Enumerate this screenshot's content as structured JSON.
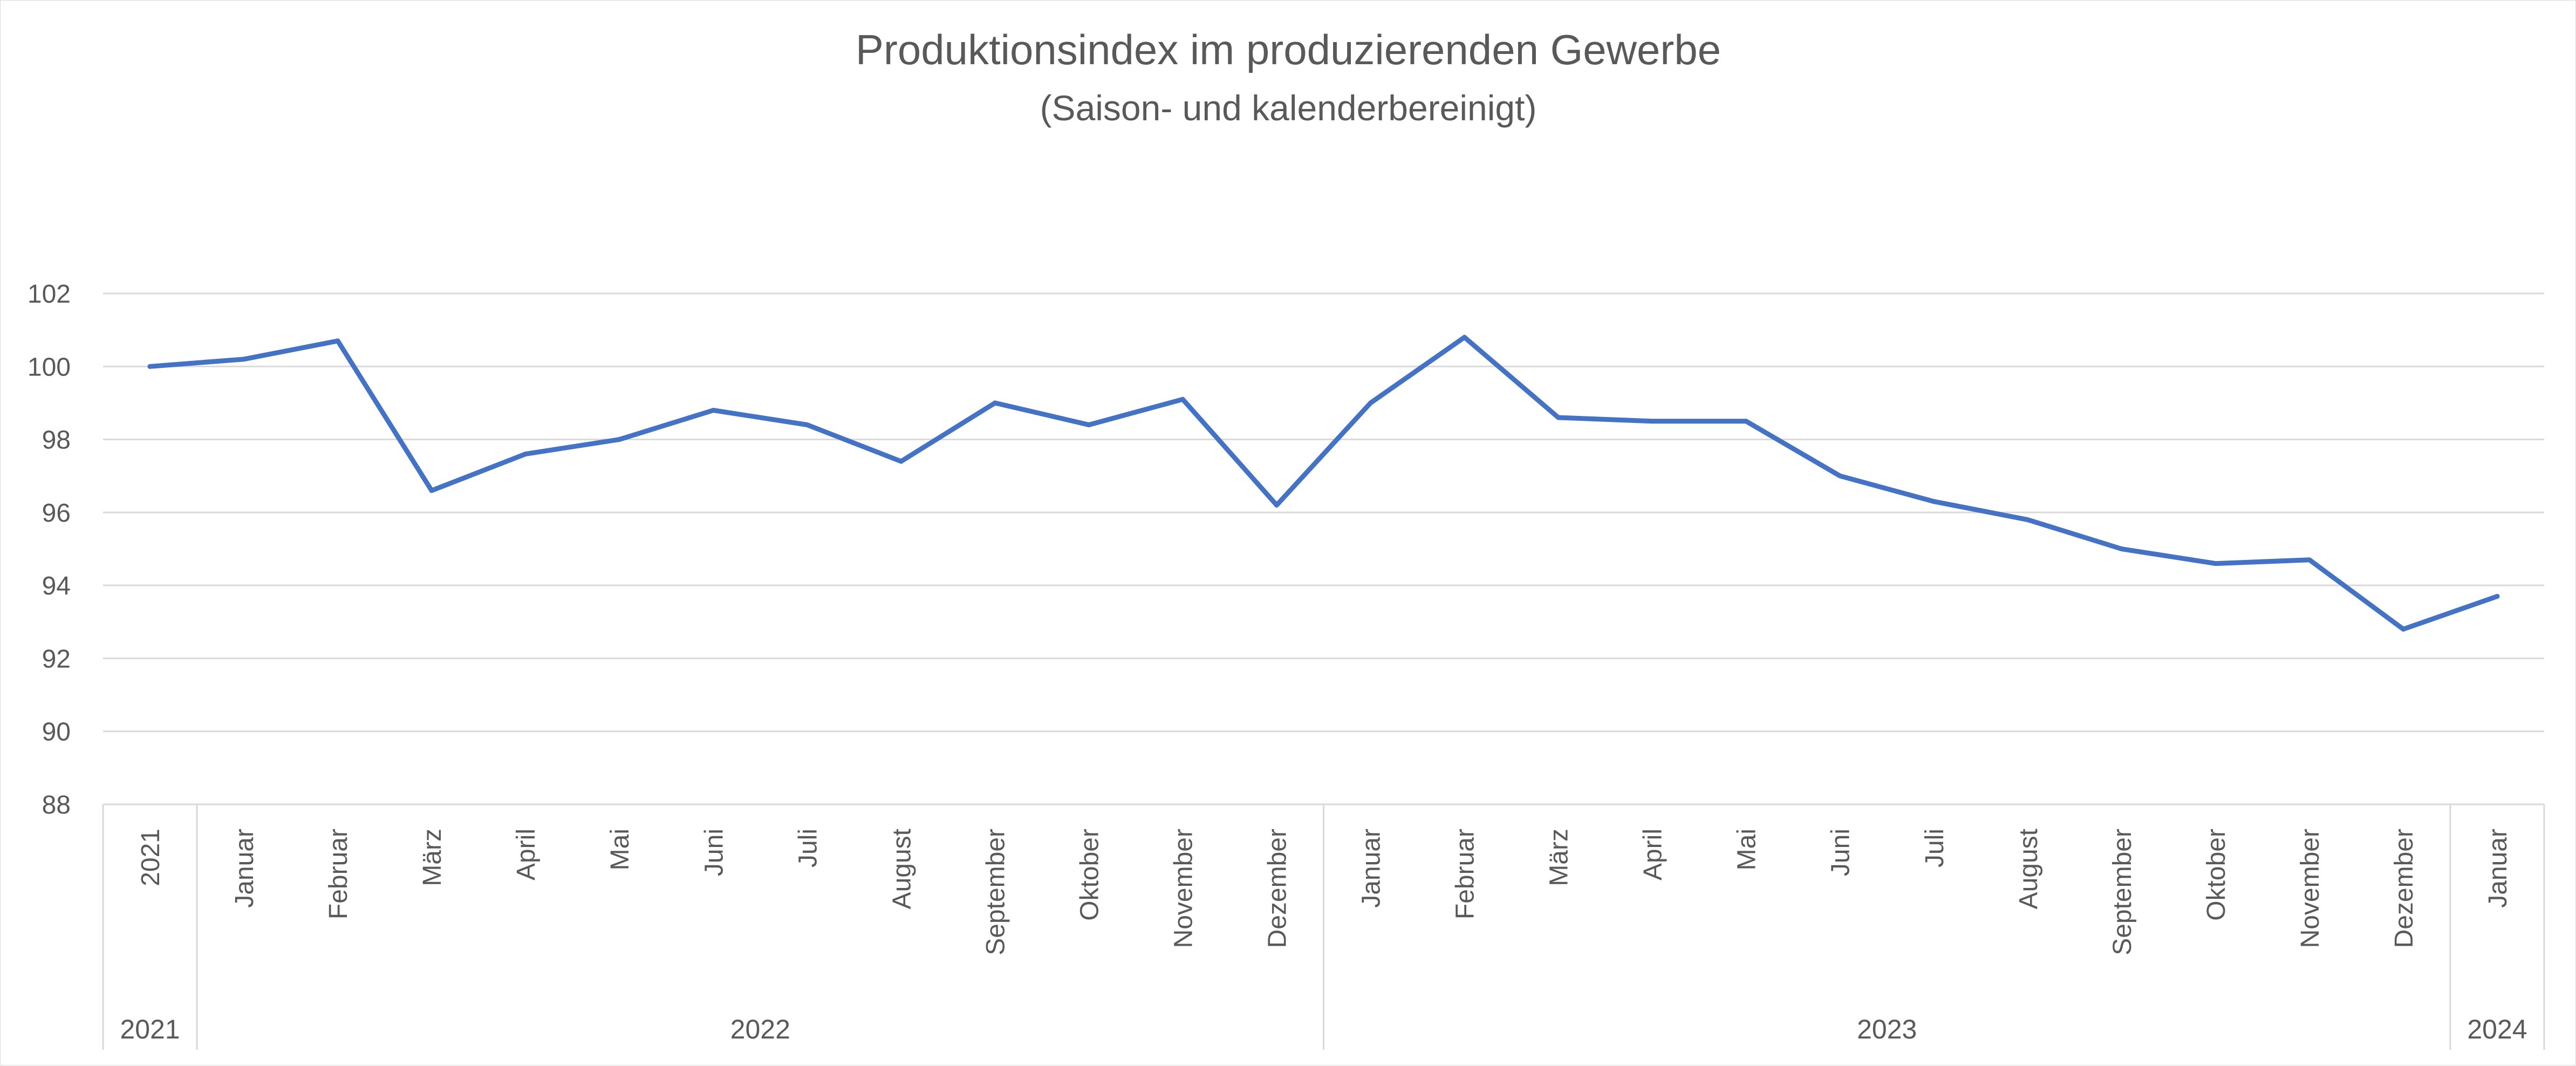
{
  "chart_data": {
    "type": "line",
    "title": "Produktionsindex im produzierenden Gewerbe",
    "subtitle": "(Saison- und kalenderbereinigt)",
    "xlabel": "",
    "ylabel": "",
    "ylim": [
      88,
      102
    ],
    "yticks": [
      88,
      90,
      92,
      94,
      96,
      98,
      100,
      102
    ],
    "grid": true,
    "legend": "none",
    "categories": [
      "2021",
      "Januar",
      "Februar",
      "März",
      "April",
      "Mai",
      "Juni",
      "Juli",
      "August",
      "September",
      "Oktober",
      "November",
      "Dezember",
      "Januar",
      "Februar",
      "März",
      "April",
      "Mai",
      "Juni",
      "Juli",
      "August",
      "September",
      "Oktober",
      "November",
      "Dezember",
      "Januar"
    ],
    "groups": [
      {
        "label": "2021",
        "count": 1
      },
      {
        "label": "2022",
        "count": 12
      },
      {
        "label": "2023",
        "count": 12
      },
      {
        "label": "2024",
        "count": 1
      }
    ],
    "series": [
      {
        "color": "#4472C4",
        "values": [
          100.0,
          100.2,
          100.7,
          96.6,
          97.6,
          98.0,
          98.8,
          98.4,
          97.4,
          99.0,
          98.4,
          99.1,
          96.2,
          99.0,
          100.8,
          98.6,
          98.5,
          98.5,
          97.0,
          96.3,
          95.8,
          95.0,
          94.6,
          94.7,
          92.8,
          93.7
        ]
      }
    ],
    "colors": {
      "line": "#4472C4",
      "grid": "#d9d9d9",
      "text": "#595959"
    }
  }
}
